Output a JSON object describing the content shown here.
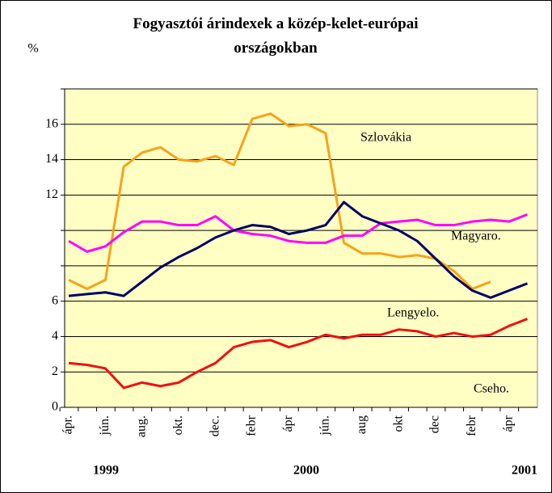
{
  "chart_data": {
    "type": "line",
    "title": "Fogyasztói árindexek a közép-kelet-európai országokban",
    "y_label": "%",
    "categories": [
      "ápr.",
      null,
      "jún.",
      null,
      "aug.",
      null,
      "okt.",
      null,
      "dec.",
      null,
      "febr",
      null,
      "ápr",
      null,
      "jún.",
      null,
      "aug",
      null,
      "okt",
      null,
      "dec",
      null,
      "febr",
      null,
      "ápr",
      null
    ],
    "year_labels": [
      "1999",
      "2000",
      "2001"
    ],
    "ylim": [
      0,
      18
    ],
    "yticks": [
      0,
      2,
      4,
      6,
      12,
      14,
      16
    ],
    "grid_lines": [
      0,
      2,
      4,
      6,
      8,
      10,
      12,
      14,
      16,
      18
    ],
    "series": [
      {
        "name": "Szlovákia",
        "color": "#f7a21b",
        "values": [
          7.2,
          6.7,
          7.2,
          13.6,
          14.4,
          14.7,
          14.0,
          13.9,
          14.2,
          13.7,
          16.3,
          16.6,
          15.9,
          16.0,
          15.5,
          9.3,
          8.7,
          8.7,
          8.5,
          8.6,
          8.4,
          7.7,
          6.7,
          7.1,
          null,
          null
        ]
      },
      {
        "name": "Magyaro.",
        "color": "#ff00ff",
        "values": [
          9.4,
          8.8,
          9.1,
          9.9,
          10.5,
          10.5,
          10.3,
          10.3,
          10.8,
          10.0,
          9.8,
          9.7,
          9.4,
          9.3,
          9.3,
          9.7,
          9.7,
          10.4,
          10.5,
          10.6,
          10.3,
          10.3,
          10.5,
          10.6,
          10.5,
          10.9
        ]
      },
      {
        "name": "Lengyelo.",
        "color": "#000066",
        "values": [
          6.3,
          6.4,
          6.5,
          6.3,
          7.1,
          7.9,
          8.5,
          9.0,
          9.6,
          10.0,
          10.3,
          10.2,
          9.8,
          10.0,
          10.3,
          11.6,
          10.8,
          10.4,
          10.0,
          9.4,
          8.4,
          7.4,
          6.6,
          6.2,
          6.6,
          7.0
        ]
      },
      {
        "name": "Cseho.",
        "color": "#ee1111",
        "values": [
          2.5,
          2.4,
          2.2,
          1.1,
          1.4,
          1.2,
          1.4,
          2.0,
          2.5,
          3.4,
          3.7,
          3.8,
          3.4,
          3.7,
          4.1,
          3.9,
          4.1,
          4.1,
          4.4,
          4.3,
          4.0,
          4.2,
          4.0,
          4.1,
          4.6,
          5.0
        ]
      }
    ]
  }
}
